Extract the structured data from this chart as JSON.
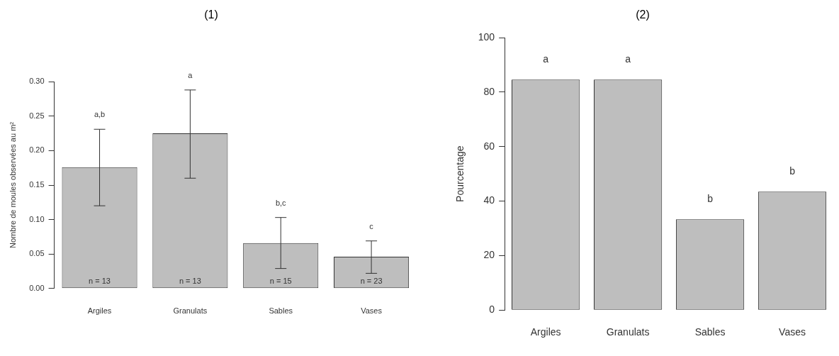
{
  "chart_data": [
    {
      "type": "bar",
      "title": "(1)",
      "ylabel": "Nombre de moules observées au m²",
      "categories": [
        "Argiles",
        "Granulats",
        "Sables",
        "Vases"
      ],
      "values": [
        0.176,
        0.225,
        0.066,
        0.046
      ],
      "color": "#bebebe",
      "errors": [
        [
          0.12,
          0.231
        ],
        [
          0.16,
          0.288
        ],
        [
          0.029,
          0.103
        ],
        [
          0.022,
          0.069
        ]
      ],
      "ylim": [
        0,
        0.3
      ],
      "yticks": [
        {
          "value": 0,
          "label": "0.00"
        },
        {
          "value": 0.05,
          "label": "0.05"
        },
        {
          "value": 0.1,
          "label": "0.10"
        },
        {
          "value": 0.15,
          "label": "0.15"
        },
        {
          "value": 0.2,
          "label": "0.20"
        },
        {
          "value": 0.25,
          "label": "0.25"
        },
        {
          "value": 0.3,
          "label": "0.30"
        }
      ],
      "annotations": [
        "a,b",
        "a",
        "b,c",
        "c",
        "n = 13",
        "n = 13",
        "n = 15",
        "n = 23"
      ]
    },
    {
      "type": "bar",
      "title": "(2)",
      "ylabel": "Pourcentage",
      "categories": [
        "Argiles",
        "Granulats",
        "Sables",
        "Vases"
      ],
      "values": [
        84.6,
        84.6,
        33.3,
        43.5
      ],
      "color": "#bebebe",
      "ylim": [
        0,
        100
      ],
      "yticks": [
        0,
        20,
        40,
        60,
        80,
        100
      ],
      "annotations": [
        "a",
        "a",
        "b",
        "b"
      ]
    }
  ]
}
